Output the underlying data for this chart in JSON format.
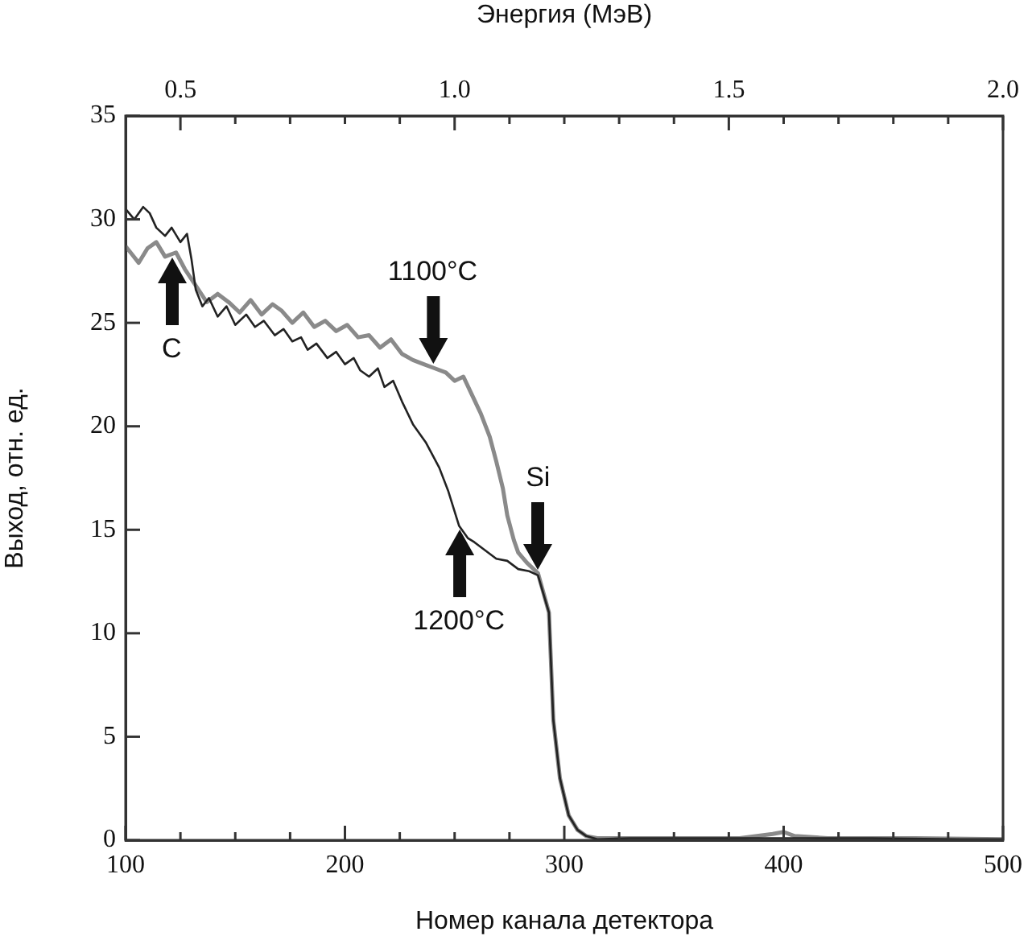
{
  "chart_data": {
    "type": "line",
    "xlabel": "Номер канала детектора",
    "ylabel": "Выход, отн. ед.",
    "x2label": "Энергия (МэВ)",
    "xlim": [
      100,
      500
    ],
    "xticks": [
      100,
      {
        "value": 125,
        "label": null
      },
      {
        "value": 150,
        "label": null
      },
      {
        "value": 175,
        "label": null
      },
      200,
      {
        "value": 225,
        "label": null
      },
      {
        "value": 250,
        "label": null
      },
      {
        "value": 275,
        "label": null
      },
      300,
      {
        "value": 325,
        "label": null
      },
      {
        "value": 350,
        "label": null
      },
      {
        "value": 375,
        "label": null
      },
      400,
      {
        "value": 425,
        "label": null
      },
      {
        "value": 450,
        "label": null
      },
      {
        "value": 475,
        "label": null
      },
      500
    ],
    "ylim": [
      0,
      35
    ],
    "yticks": [
      0,
      5,
      10,
      15,
      20,
      25,
      30,
      35
    ],
    "x2lim": [
      0.4,
      2.0
    ],
    "x2ticks": [
      {
        "value": 0.5,
        "label": "0.5"
      },
      {
        "value": 0.6,
        "label": null
      },
      {
        "value": 0.7,
        "label": null
      },
      {
        "value": 0.8,
        "label": null
      },
      {
        "value": 0.9,
        "label": null
      },
      {
        "value": 1.0,
        "label": "1.0"
      },
      {
        "value": 1.1,
        "label": null
      },
      {
        "value": 1.2,
        "label": null
      },
      {
        "value": 1.3,
        "label": null
      },
      {
        "value": 1.4,
        "label": null
      },
      {
        "value": 1.5,
        "label": "1.5"
      },
      {
        "value": 1.6,
        "label": null
      },
      {
        "value": 1.7,
        "label": null
      },
      {
        "value": 1.8,
        "label": null
      },
      {
        "value": 1.9,
        "label": null
      },
      {
        "value": 2.0,
        "label": "2.0"
      }
    ],
    "grid": false,
    "legend": false,
    "marker": "none",
    "line_style": "solid",
    "series": [
      {
        "color": "#222222",
        "x": [
          100,
          104,
          108,
          111,
          114,
          118,
          121,
          125,
          128,
          130,
          132,
          135,
          138,
          142,
          146,
          150,
          155,
          159,
          163,
          168,
          172,
          176,
          180,
          183,
          187,
          192,
          196,
          200,
          204,
          207,
          211,
          215,
          218,
          222,
          226,
          231,
          237,
          243,
          247,
          252,
          256,
          259,
          264,
          269,
          274,
          279,
          284,
          288,
          293,
          295,
          298,
          302,
          306,
          310,
          315,
          330,
          360,
          400,
          440,
          480,
          500
        ],
        "values": [
          30.5,
          30.0,
          30.6,
          30.3,
          29.6,
          29.2,
          29.6,
          28.9,
          29.3,
          28.1,
          26.6,
          25.8,
          26.2,
          25.3,
          25.8,
          24.9,
          25.4,
          24.8,
          25.1,
          24.4,
          24.7,
          24.1,
          24.3,
          23.7,
          24.0,
          23.3,
          23.6,
          23.0,
          23.3,
          22.7,
          22.4,
          22.8,
          21.9,
          22.2,
          21.2,
          20.1,
          19.2,
          18.0,
          16.9,
          15.2,
          14.6,
          14.4,
          14.0,
          13.6,
          13.5,
          13.1,
          13.0,
          12.8,
          11.0,
          5.8,
          3.0,
          1.2,
          0.5,
          0.2,
          0.05,
          0.1,
          0.1,
          0.1,
          0.1,
          0.05,
          0.05
        ]
      },
      {
        "color": "#8a8a8a",
        "x": [
          100,
          103,
          106,
          110,
          114,
          118,
          123,
          127,
          132,
          137,
          142,
          147,
          152,
          157,
          162,
          167,
          171,
          176,
          181,
          186,
          191,
          196,
          201,
          206,
          211,
          216,
          221,
          226,
          231,
          236,
          241,
          246,
          250,
          254,
          258,
          262,
          266,
          269,
          272,
          274,
          277,
          279,
          283,
          288,
          293,
          295,
          298,
          302,
          306,
          310,
          315,
          340,
          380,
          395,
          400,
          405,
          420,
          460,
          500
        ],
        "values": [
          28.7,
          28.3,
          27.9,
          28.6,
          28.9,
          28.2,
          28.4,
          27.6,
          26.8,
          26.0,
          26.4,
          26.0,
          25.5,
          26.1,
          25.4,
          25.9,
          25.6,
          25.0,
          25.5,
          24.8,
          25.1,
          24.6,
          24.9,
          24.3,
          24.4,
          23.8,
          24.2,
          23.5,
          23.2,
          23.0,
          22.8,
          22.6,
          22.2,
          22.4,
          21.5,
          20.6,
          19.5,
          18.3,
          17.0,
          15.7,
          14.5,
          13.9,
          13.4,
          12.9,
          11.0,
          5.8,
          3.0,
          1.2,
          0.5,
          0.2,
          0.1,
          0.1,
          0.1,
          0.3,
          0.4,
          0.2,
          0.1,
          0.1,
          0.05
        ]
      }
    ],
    "annotations": [
      {
        "text": "C",
        "x": 121,
        "y": 28.3
      },
      {
        "text": "1100°C",
        "x": 240,
        "y": 22.9
      },
      {
        "text": "Si",
        "x": 288,
        "y": 12.9
      },
      {
        "text": "1200°C",
        "x": 252,
        "y": 15.2
      }
    ]
  }
}
